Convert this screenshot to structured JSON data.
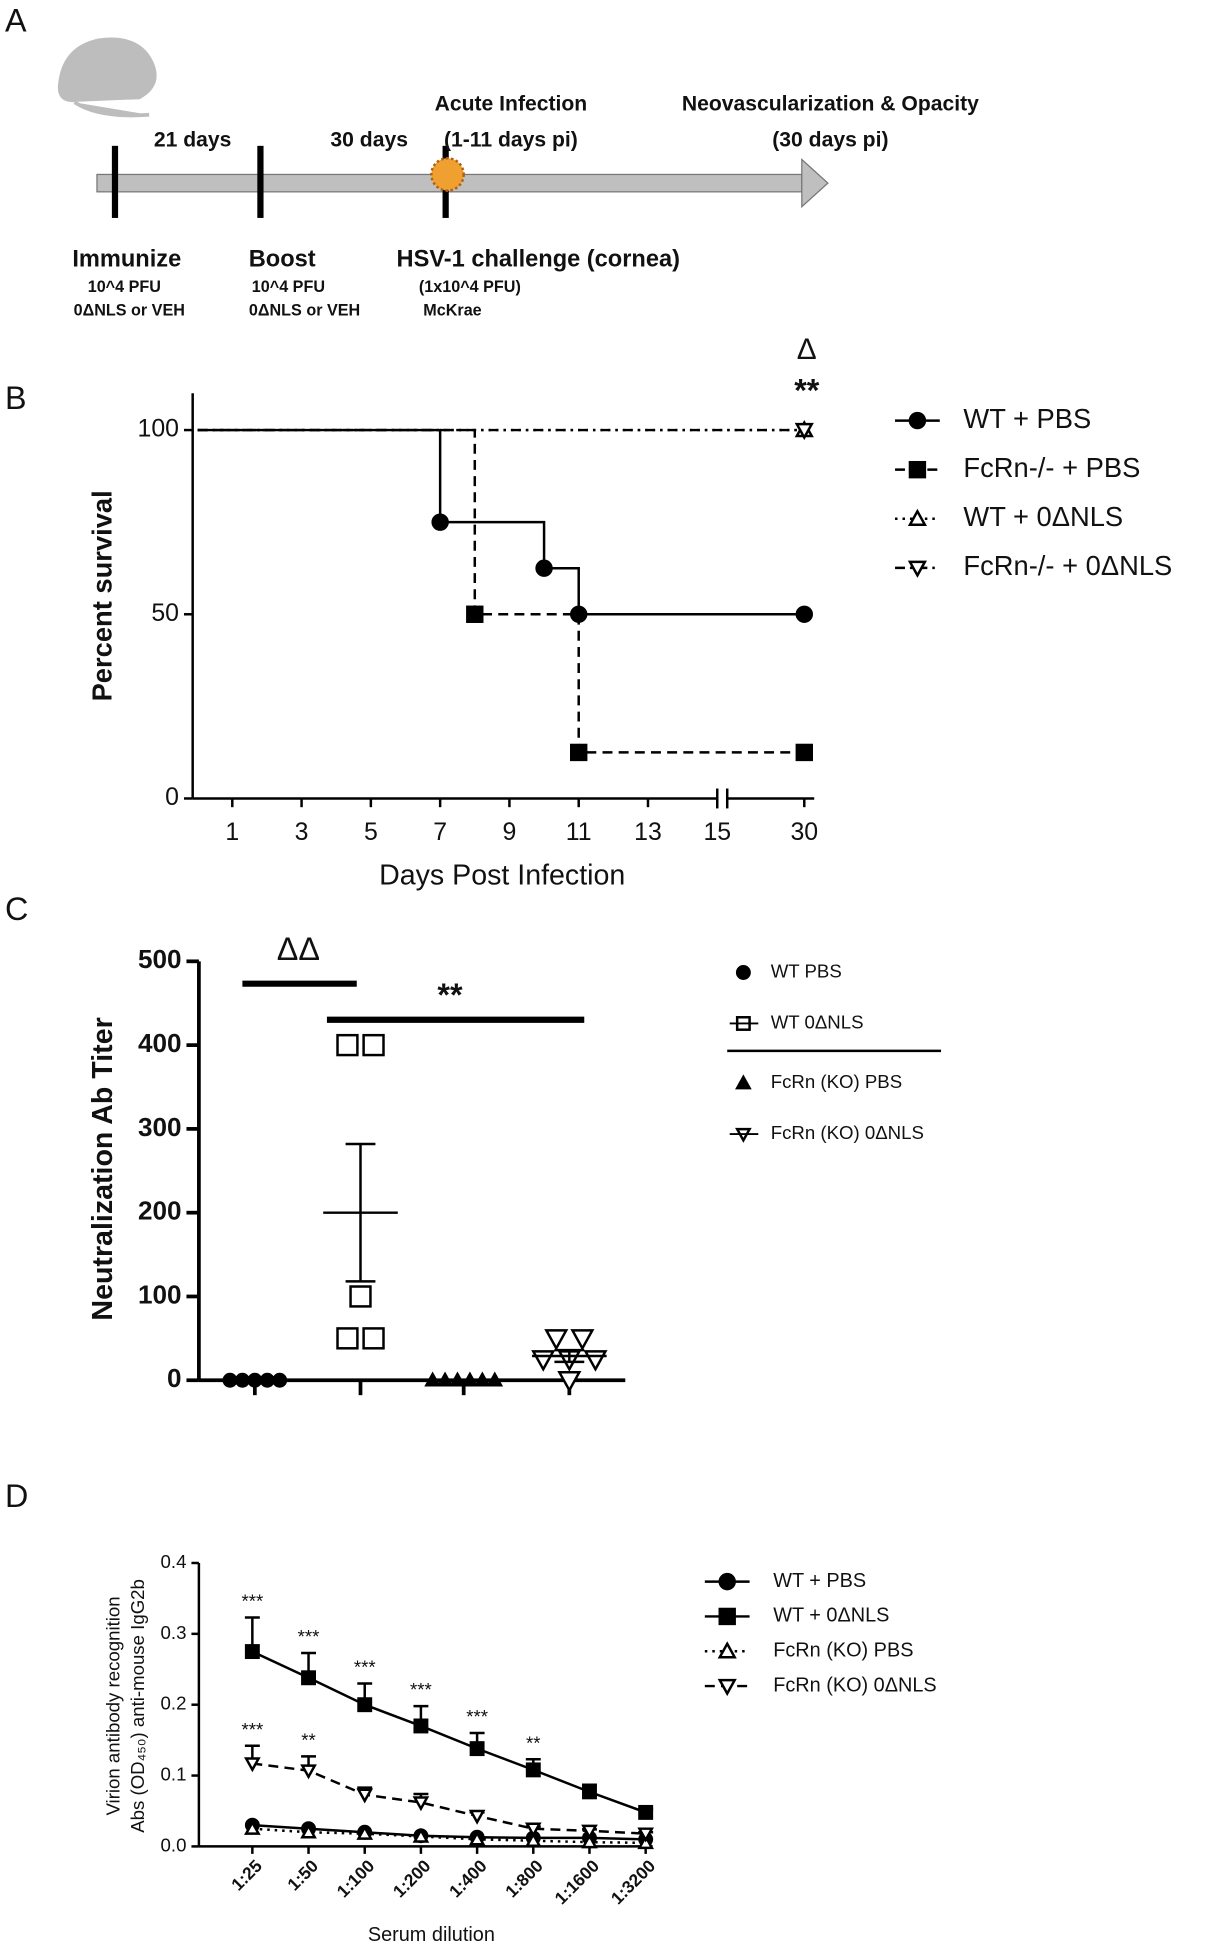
{
  "panel_labels": [
    "A",
    "B",
    "C",
    "D"
  ],
  "timeline": {
    "intervals": [
      "21 days",
      "30 days"
    ],
    "phases": [
      {
        "title": "Acute Infection",
        "detail": "(1-11 days pi)"
      },
      {
        "title": "Neovascularization & Opacity",
        "detail": "(30 days pi)"
      }
    ],
    "events": [
      {
        "title": "Immunize",
        "lines": [
          "10^4 PFU",
          "0ΔNLS or VEH"
        ]
      },
      {
        "title": "Boost",
        "lines": [
          "10^4 PFU",
          "0ΔNLS or VEH"
        ]
      },
      {
        "title": "HSV-1 challenge (cornea)",
        "lines": [
          "(1x10^4 PFU)",
          "McKrae"
        ]
      }
    ]
  },
  "chart_data": [
    {
      "type": "step",
      "xlabel": "Days Post Infection",
      "ylabel": "Percent survival",
      "xlim": [
        0,
        30
      ],
      "xbreak": [
        15,
        29
      ],
      "ylim": [
        0,
        110
      ],
      "xticks": [
        1,
        3,
        5,
        7,
        9,
        11,
        13,
        15,
        30
      ],
      "yticks": [
        0,
        50,
        100
      ],
      "annotations": [
        "Δ",
        "**"
      ],
      "legend": "right",
      "series": [
        {
          "name": "WT + PBS",
          "color": "#000000",
          "marker": "circle",
          "fill": true,
          "dash": "solid",
          "x": [
            0,
            7,
            10,
            11,
            30
          ],
          "y": [
            100,
            75,
            62.5,
            50,
            50
          ]
        },
        {
          "name": "FcRn-/- + PBS",
          "color": "#000000",
          "marker": "square",
          "fill": true,
          "dash": "dashed",
          "x": [
            0,
            8,
            11,
            30
          ],
          "y": [
            100,
            50,
            12.5,
            12.5
          ]
        },
        {
          "name": "WT + 0ΔNLS",
          "color": "#000000",
          "marker": "triangle-up",
          "fill": false,
          "dash": "dotted",
          "x": [
            0,
            30
          ],
          "y": [
            100,
            100
          ]
        },
        {
          "name": "FcRn-/- + 0ΔNLS",
          "color": "#000000",
          "marker": "triangle-down",
          "fill": false,
          "dash": "dashdot",
          "x": [
            0,
            30
          ],
          "y": [
            100,
            100
          ]
        }
      ]
    },
    {
      "type": "dot",
      "ylabel": "Neutralization Ab Titer",
      "ylim": [
        0,
        500
      ],
      "yticks": [
        0,
        100,
        200,
        300,
        400,
        500
      ],
      "annotations": [
        "ΔΔ",
        "**"
      ],
      "legend": "right",
      "series": [
        {
          "name": "WT PBS",
          "color": "#000000",
          "marker": "circle",
          "fill": true,
          "values": [
            0,
            0,
            0,
            0,
            0
          ],
          "mean": 0
        },
        {
          "name": "WT 0ΔNLS",
          "color": "#000000",
          "marker": "square",
          "fill": false,
          "values": [
            400,
            400,
            100,
            50,
            50
          ],
          "mean": 200,
          "sem": 82
        },
        {
          "name": "FcRn (KO) PBS",
          "color": "#000000",
          "marker": "triangle-up",
          "fill": true,
          "values": [
            0,
            0,
            0,
            0,
            0,
            0
          ],
          "mean": 0
        },
        {
          "name": "FcRn (KO) 0ΔNLS",
          "color": "#000000",
          "marker": "triangle-down",
          "fill": false,
          "values": [
            50,
            50,
            25,
            25,
            25,
            0
          ],
          "mean": 29,
          "sem": 7
        }
      ]
    },
    {
      "type": "line",
      "xlabel": "Serum dilution",
      "ylabel": [
        "Virion antibody recognition",
        "Abs (OD₄₅₀) anti-mouse IgG2b"
      ],
      "categories": [
        "1:25",
        "1:50",
        "1:100",
        "1:200",
        "1:400",
        "1:800",
        "1:1600",
        "1:3200"
      ],
      "ylim": [
        0,
        0.4
      ],
      "yticks": [
        {
          "value": 0,
          "label": "0.0"
        },
        0.1,
        0.2,
        0.3,
        0.4
      ],
      "legend": "right",
      "series": [
        {
          "name": "WT + PBS",
          "color": "#000000",
          "marker": "circle",
          "fill": true,
          "dash": "solid",
          "values": [
            0.03,
            0.025,
            0.02,
            0.015,
            0.013,
            0.012,
            0.012,
            0.01
          ]
        },
        {
          "name": "WT + 0ΔNLS",
          "color": "#000000",
          "marker": "square",
          "fill": true,
          "dash": "solid",
          "values": [
            0.275,
            0.238,
            0.2,
            0.17,
            0.138,
            0.108,
            0.077,
            0.048
          ],
          "errors": [
            0.048,
            0.035,
            0.03,
            0.028,
            0.022,
            0.015,
            0.01,
            0.005
          ],
          "sig_labels": [
            "***",
            "***",
            "***",
            "***",
            "***",
            "**",
            null,
            null
          ]
        },
        {
          "name": "FcRn (KO) PBS",
          "color": "#000000",
          "marker": "triangle-up",
          "fill": false,
          "dash": "dotted",
          "values": [
            0.025,
            0.02,
            0.018,
            0.014,
            0.01,
            0.008,
            0.006,
            0.005
          ]
        },
        {
          "name": "FcRn (KO) 0ΔNLS",
          "color": "#000000",
          "marker": "triangle-down",
          "fill": false,
          "dash": "dashed",
          "values": [
            0.117,
            0.107,
            0.073,
            0.062,
            0.043,
            0.025,
            0.022,
            0.018
          ],
          "errors": [
            0.025,
            0.02,
            0.01,
            0.012,
            0.005,
            0.003,
            0.002,
            0.002
          ],
          "sig_labels": [
            "***",
            "**",
            null,
            null,
            null,
            null,
            null,
            null
          ]
        }
      ]
    }
  ]
}
